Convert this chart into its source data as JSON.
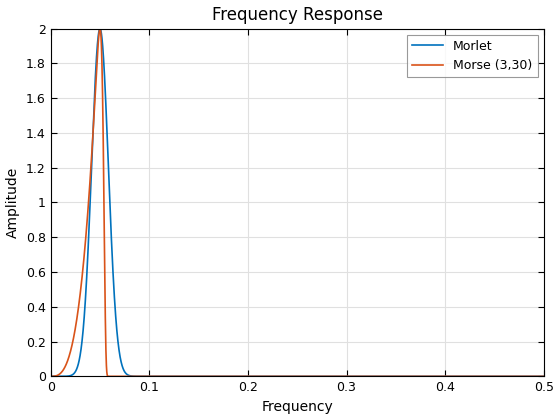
{
  "title": "Frequency Response",
  "xlabel": "Frequency",
  "ylabel": "Amplitude",
  "xlim": [
    0,
    0.5
  ],
  "ylim": [
    0,
    2
  ],
  "xticks": [
    0,
    0.1,
    0.2,
    0.3,
    0.4,
    0.5
  ],
  "yticks": [
    0,
    0.2,
    0.4,
    0.6,
    0.8,
    1.0,
    1.2,
    1.4,
    1.6,
    1.8,
    2.0
  ],
  "morlet_color": "#0072BD",
  "morse_color": "#D95319",
  "morlet_label": "Morlet",
  "morse_label": "Morse (3,30)",
  "morlet_peak": 0.05,
  "morlet_sigma": 0.0085,
  "morse_peak": 0.05,
  "morse_beta": 3,
  "morse_gamma": 30,
  "n_points": 5000,
  "freq_max": 0.5,
  "peak_amplitude": 2.0,
  "background_color": "#ffffff",
  "grid_color": "#e0e0e0",
  "title_fontsize": 12,
  "label_fontsize": 10,
  "tick_fontsize": 9,
  "linewidth": 1.2
}
